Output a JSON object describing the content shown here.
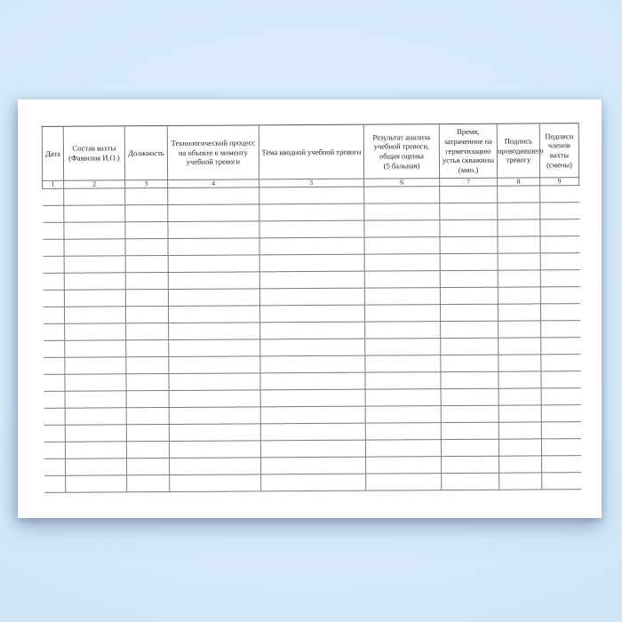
{
  "document": {
    "kind": "scanned paper journal form (Russian well-control training alarm log)",
    "language": "ru"
  },
  "colors": {
    "background_blue": "#d5e8fa",
    "background_edge_blue": "#c7dbf2",
    "paper": "#ffffff",
    "grid_line": "#7b7b7b",
    "text": "#1c1c1c",
    "shadow": "rgba(96,125,165,0.5)"
  },
  "table": {
    "column_count": 9,
    "row_count": 18,
    "body_cells_empty": true,
    "headers": [
      "Дата",
      "Состав вахты\n(Фамилия И.О.)",
      "Должность",
      "Технологический процесс\nна объекте к моменту\nучебной тревоги",
      "Тема вводной учебной тревоги",
      "Результат анализа\nучебной тревоги,\nобщая оценка\n(5 бальная)",
      "Время,\nзатраченное на\nгерметизацию\nустья скважины\n(мин.)",
      "Подпись\nпроводившего\nтревогу",
      "Подписи\nчленов\nвахты\n(смены)"
    ],
    "column_numbers": [
      "1",
      "2",
      "3",
      "4",
      "5",
      "6",
      "7",
      "8",
      "9"
    ]
  }
}
